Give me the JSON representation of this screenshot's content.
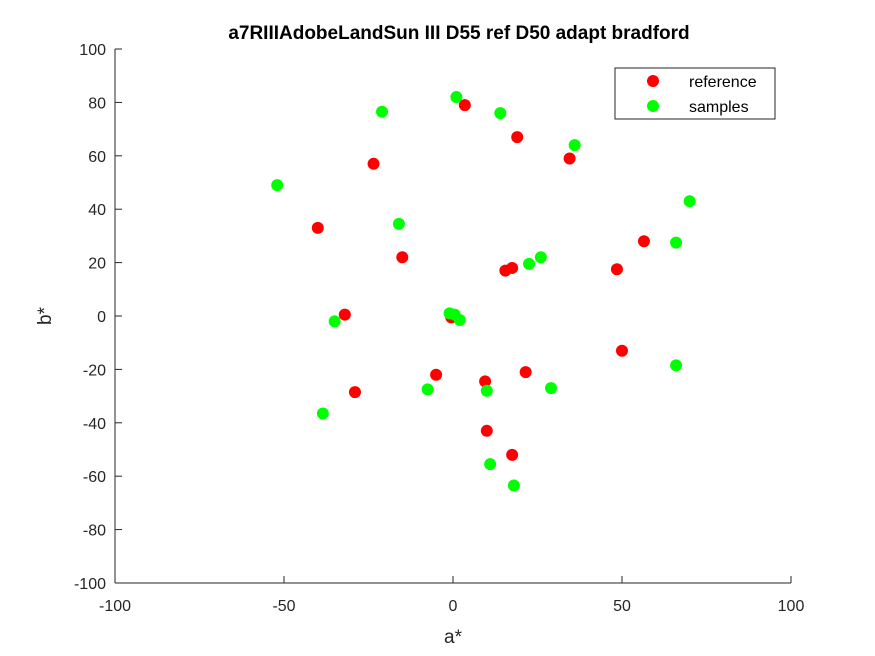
{
  "chart_data": {
    "type": "scatter",
    "title": "a7RIIIAdobeLandSun III D55 ref D50 adapt bradford",
    "xlabel": "a*",
    "ylabel": "b*",
    "xlim": [
      -100,
      100
    ],
    "ylim": [
      -100,
      100
    ],
    "xticks": [
      -100,
      -50,
      0,
      50,
      100
    ],
    "yticks": [
      -100,
      -80,
      -60,
      -40,
      -20,
      0,
      20,
      40,
      60,
      80,
      100
    ],
    "xtick_labels": [
      "-100",
      "-50",
      "0",
      "50",
      "100"
    ],
    "ytick_labels": [
      "-100",
      "-80",
      "-60",
      "-40",
      "-20",
      "0",
      "20",
      "40",
      "60",
      "80",
      "100"
    ],
    "grid": false,
    "legend_position": "top-right",
    "series": [
      {
        "name": "reference",
        "color": "#ff0000",
        "points": [
          [
            3.5,
            79
          ],
          [
            19,
            67
          ],
          [
            -23.5,
            57
          ],
          [
            34.5,
            59
          ],
          [
            -40,
            33
          ],
          [
            -15,
            22
          ],
          [
            56.5,
            28
          ],
          [
            17.5,
            18
          ],
          [
            15.5,
            17
          ],
          [
            48.5,
            17.5
          ],
          [
            -32,
            0.5
          ],
          [
            -0.5,
            -0.5
          ],
          [
            50,
            -13
          ],
          [
            -5,
            -22
          ],
          [
            9.5,
            -24.5
          ],
          [
            21.5,
            -21
          ],
          [
            -29,
            -28.5
          ],
          [
            10,
            -43
          ],
          [
            17.5,
            -52
          ]
        ]
      },
      {
        "name": "samples",
        "color": "#00ff00",
        "points": [
          [
            1,
            82
          ],
          [
            -21,
            76.5
          ],
          [
            14,
            76
          ],
          [
            36,
            64
          ],
          [
            -52,
            49
          ],
          [
            -16,
            34.5
          ],
          [
            70,
            43
          ],
          [
            66,
            27.5
          ],
          [
            26,
            22
          ],
          [
            22.5,
            19.5
          ],
          [
            -35,
            -2
          ],
          [
            -1,
            1
          ],
          [
            0.5,
            0.5
          ],
          [
            2,
            -1.5
          ],
          [
            66,
            -18.5
          ],
          [
            -7.5,
            -27.5
          ],
          [
            10,
            -28
          ],
          [
            29,
            -27
          ],
          [
            -38.5,
            -36.5
          ],
          [
            11,
            -55.5
          ],
          [
            18,
            -63.5
          ]
        ]
      }
    ]
  }
}
